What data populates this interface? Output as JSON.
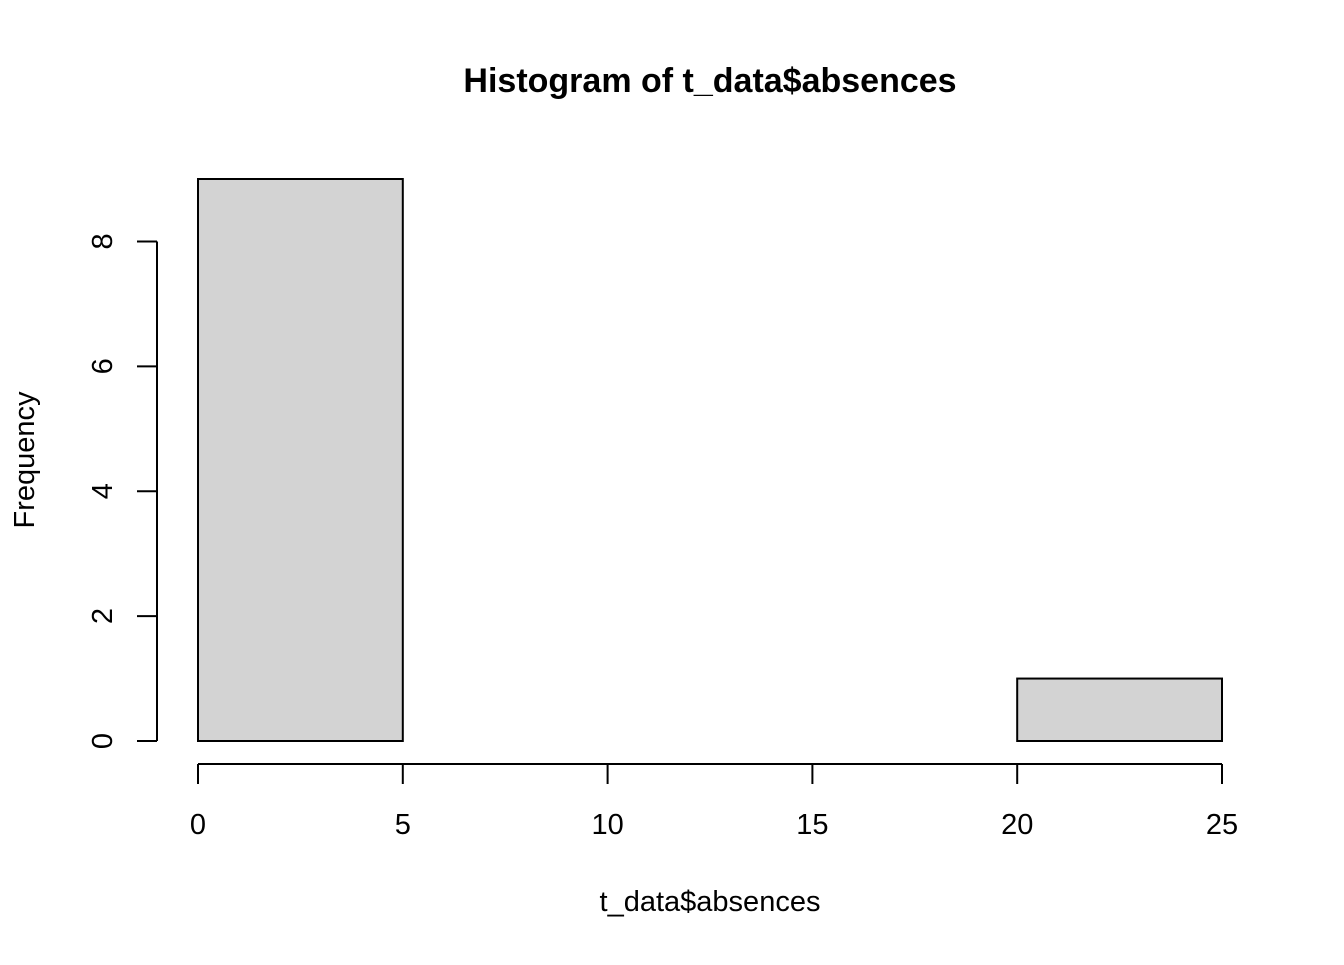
{
  "chart_data": {
    "type": "bar",
    "subtype": "histogram",
    "title": "Histogram of t_data$absences",
    "xlabel": "t_data$absences",
    "ylabel": "Frequency",
    "bins": [
      {
        "from": 0,
        "to": 5,
        "count": 9
      },
      {
        "from": 5,
        "to": 10,
        "count": 0
      },
      {
        "from": 10,
        "to": 15,
        "count": 0
      },
      {
        "from": 15,
        "to": 20,
        "count": 0
      },
      {
        "from": 20,
        "to": 25,
        "count": 1
      }
    ],
    "xlim": [
      0,
      25
    ],
    "ylim": [
      0,
      9
    ],
    "x_ticks": [
      0,
      5,
      10,
      15,
      20,
      25
    ],
    "y_ticks": [
      0,
      2,
      4,
      6,
      8
    ],
    "bar_fill": "#d3d3d3",
    "bar_stroke": "#000000",
    "grid": false,
    "legend": "none"
  }
}
